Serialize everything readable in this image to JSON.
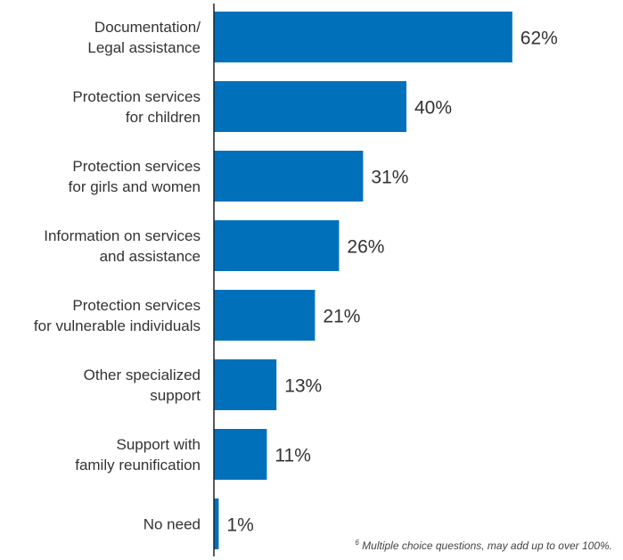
{
  "chart_data": {
    "type": "bar",
    "orientation": "horizontal",
    "categories": [
      [
        "Documentation/",
        "Legal assistance"
      ],
      [
        "Protection services",
        "for children"
      ],
      [
        "Protection services",
        "for girls and women"
      ],
      [
        "Information on services",
        "and assistance"
      ],
      [
        "Protection services",
        "for vulnerable individuals"
      ],
      [
        "Other specialized",
        "support"
      ],
      [
        "Support with",
        "family reunification"
      ],
      [
        "No need"
      ]
    ],
    "values": [
      62,
      40,
      31,
      26,
      21,
      13,
      11,
      1
    ],
    "value_labels": [
      "62%",
      "40%",
      "31%",
      "26%",
      "21%",
      "13%",
      "11%",
      "1%"
    ],
    "unit": "%",
    "xlim": [
      0,
      100
    ],
    "bar_color": "#0070BA",
    "grid": false,
    "legend": "none"
  },
  "footnote": {
    "marker": "6",
    "text": " Multiple choice questions, may add up to over 100%."
  }
}
